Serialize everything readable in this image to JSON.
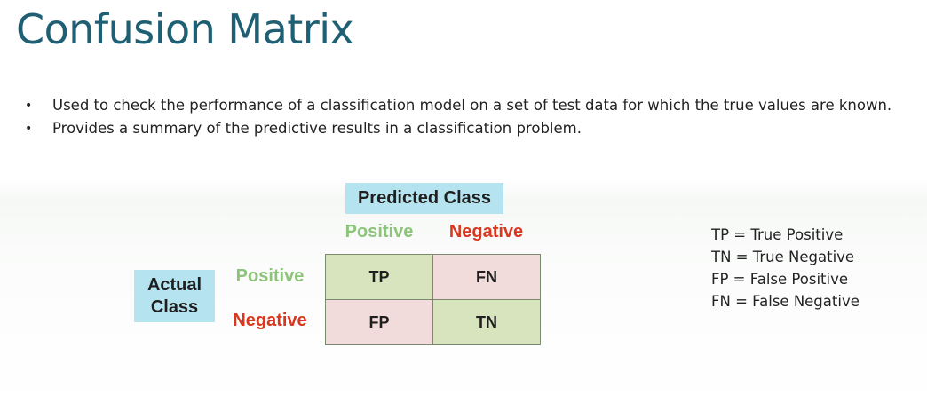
{
  "slide": {
    "title": "Confusion Matrix",
    "bullets": [
      {
        "marker": "•",
        "text": "Used to check the performance of a classification model on a set of test data for which the true values are known."
      },
      {
        "marker": "•",
        "text": "Provides a summary of the predictive results in a classification problem."
      }
    ]
  },
  "matrix": {
    "predicted_label": "Predicted Class",
    "actual_label": "Actual Class",
    "column_headers": [
      "Positive",
      "Negative"
    ],
    "row_headers": [
      "Positive",
      "Negative"
    ],
    "cells": [
      [
        "TP",
        "FN"
      ],
      [
        "FP",
        "TN"
      ]
    ],
    "colors": {
      "header_box": "#b5e3ef",
      "positive_text": "#8cc47a",
      "negative_text": "#d9371f",
      "correct_cell": "#d7e4bd",
      "error_cell": "#f2dcdb",
      "title": "#1f5f74"
    }
  },
  "legend": [
    "TP = True Positive",
    "TN = True Negative",
    "FP = False Positive",
    "FN = False Negative"
  ]
}
